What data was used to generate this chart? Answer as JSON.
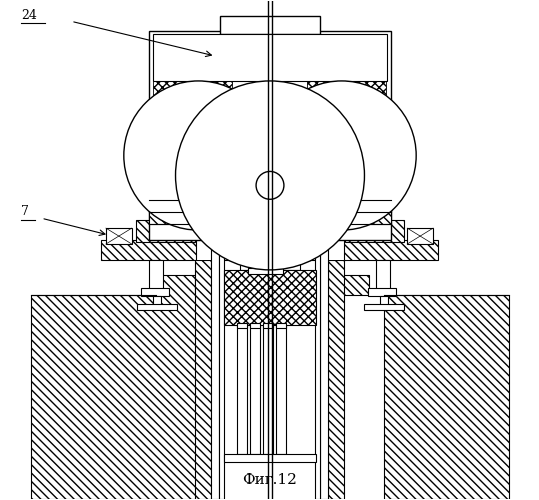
{
  "title": "Фиг.12",
  "label_24": "24",
  "label_7": "7",
  "bg_color": "#ffffff",
  "line_color": "#000000",
  "fig_width": 5.39,
  "fig_height": 5.0,
  "dpi": 100
}
